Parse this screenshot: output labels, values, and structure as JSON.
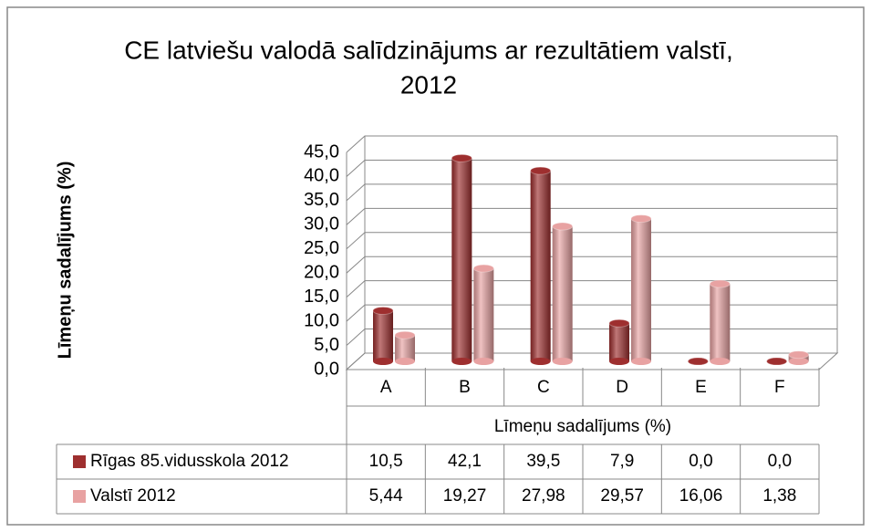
{
  "chart_data": {
    "type": "bar3d",
    "title": "CE latviešu valodā salīdzinājums ar rezultātiem valstī,",
    "subtitle": "2012",
    "y_label": "Līmeņu sadalījums (%)",
    "x_label": "Līmeņu sadalījums (%)",
    "categories": [
      "A",
      "B",
      "C",
      "D",
      "E",
      "F"
    ],
    "series": [
      {
        "name": "Rīgas 85.vidusskola 2012",
        "color": "#9e2f2f",
        "values": [
          10.5,
          42.1,
          39.5,
          7.9,
          0.0,
          0.0
        ],
        "value_labels": [
          "10,5",
          "42,1",
          "39,5",
          "7,9",
          "0,0",
          "0,0"
        ]
      },
      {
        "name": "Valstī 2012",
        "color": "#e8a2a2",
        "values": [
          5.44,
          19.27,
          27.98,
          29.57,
          16.06,
          1.38
        ],
        "value_labels": [
          "5,44",
          "19,27",
          "27,98",
          "29,57",
          "16,06",
          "1,38"
        ]
      }
    ],
    "ylim": [
      0,
      45
    ],
    "yticks": [
      {
        "value": 0,
        "label": "0,0"
      },
      {
        "value": 5,
        "label": "5,0"
      },
      {
        "value": 10,
        "label": "10,0"
      },
      {
        "value": 15,
        "label": "15,0"
      },
      {
        "value": 20,
        "label": "20,0"
      },
      {
        "value": 25,
        "label": "25,0"
      },
      {
        "value": 30,
        "label": "30,0"
      },
      {
        "value": 35,
        "label": "35,0"
      },
      {
        "value": 40,
        "label": "40,0"
      },
      {
        "value": 45,
        "label": "45,0"
      }
    ],
    "grid": true
  }
}
